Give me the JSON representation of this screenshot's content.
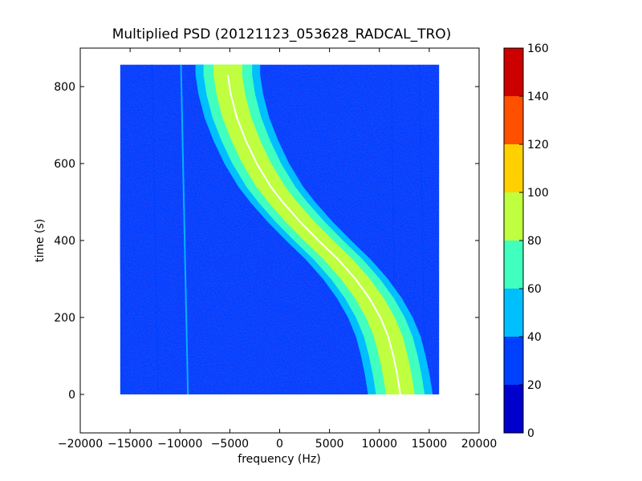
{
  "chart_data": {
    "type": "heatmap",
    "title": "Multiplied PSD (20121123_053628_RADCAL_TRO)",
    "xlabel": "frequency (Hz)",
    "ylabel": "time (s)",
    "xlim": [
      -20000,
      20000
    ],
    "ylim": [
      -100,
      900
    ],
    "xticks": [
      -20000,
      -15000,
      -10000,
      -5000,
      0,
      5000,
      10000,
      15000,
      20000
    ],
    "yticks": [
      0,
      200,
      400,
      600,
      800
    ],
    "data_extent": {
      "x": [
        -16000,
        16000
      ],
      "y": [
        0,
        857
      ]
    },
    "colorbar": {
      "range": [
        0,
        160
      ],
      "ticks": [
        0,
        20,
        40,
        60,
        80,
        100,
        120,
        140,
        160
      ],
      "levels": [
        {
          "from": 0,
          "to": 20,
          "color": "#0000cd"
        },
        {
          "from": 20,
          "to": 40,
          "color": "#0040ff"
        },
        {
          "from": 40,
          "to": 60,
          "color": "#00bfff"
        },
        {
          "from": 60,
          "to": 80,
          "color": "#40ffbf"
        },
        {
          "from": 80,
          "to": 100,
          "color": "#bfff40"
        },
        {
          "from": 100,
          "to": 120,
          "color": "#ffd000"
        },
        {
          "from": 120,
          "to": 140,
          "color": "#ff5000"
        },
        {
          "from": 140,
          "to": 160,
          "color": "#cd0000"
        }
      ]
    },
    "background_level": 30,
    "doppler_trace": {
      "description_values": "frequency of signal peak vs time",
      "points": [
        {
          "t": 830,
          "f": -5200
        },
        {
          "t": 780,
          "f": -4900
        },
        {
          "t": 720,
          "f": -4300
        },
        {
          "t": 660,
          "f": -3400
        },
        {
          "t": 600,
          "f": -2300
        },
        {
          "t": 540,
          "f": -900
        },
        {
          "t": 500,
          "f": 300
        },
        {
          "t": 450,
          "f": 2000
        },
        {
          "t": 400,
          "f": 3900
        },
        {
          "t": 350,
          "f": 5900
        },
        {
          "t": 300,
          "f": 7600
        },
        {
          "t": 250,
          "f": 9000
        },
        {
          "t": 200,
          "f": 10100
        },
        {
          "t": 150,
          "f": 10900
        },
        {
          "t": 100,
          "f": 11400
        },
        {
          "t": 50,
          "f": 11800
        },
        {
          "t": 0,
          "f": 12100
        }
      ],
      "band_halfwidths": [
        {
          "level": 40,
          "halfwidth": 3200,
          "color": "#00bfff"
        },
        {
          "level": 60,
          "halfwidth": 2400,
          "color": "#40ffbf"
        },
        {
          "level": 80,
          "halfwidth": 1400,
          "color": "#bfff40"
        }
      ],
      "peak_color": "#ffffff"
    },
    "vertical_lines": [
      {
        "f_top": -9900,
        "f_bottom": -9200,
        "level": 50
      },
      {
        "f_top": -12800,
        "f_bottom": -12200,
        "level": 35
      },
      {
        "f_top": -16200,
        "f_bottom": -15800,
        "level": 35
      },
      {
        "f_top": 14000,
        "f_bottom": 14600,
        "level": 35
      },
      {
        "f_top": 11200,
        "f_bottom": 11600,
        "level": 35
      }
    ]
  }
}
